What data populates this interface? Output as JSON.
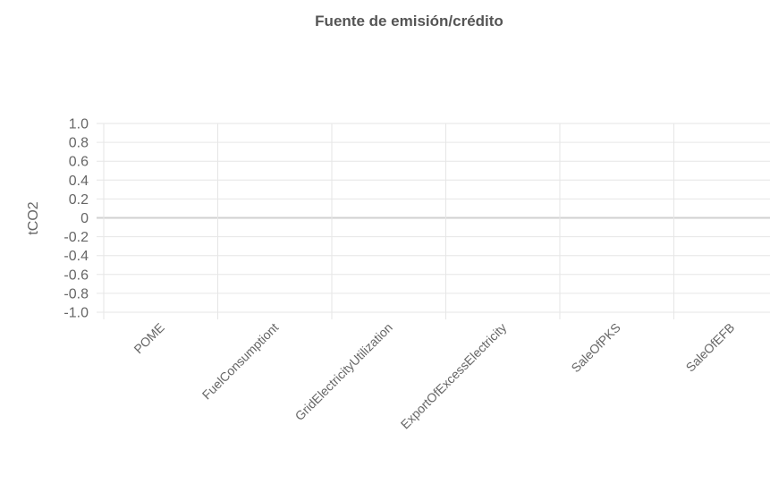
{
  "chart_data": {
    "type": "bar",
    "title": "Fuente de emisión/crédito",
    "xlabel": "",
    "ylabel": "tCO2",
    "categories": [
      "POME",
      "FuelConsumptiont",
      "GridElectricityUtilization",
      "ExportOfExcessElectricity",
      "SaleOfPKS",
      "SaleOfEFB"
    ],
    "series": [
      {
        "values": [
          0,
          0,
          0,
          0,
          0,
          0
        ]
      }
    ],
    "ylim": [
      -1.0,
      1.0
    ],
    "yticks": [
      "1.0",
      "0.8",
      "0.6",
      "0.4",
      "0.2",
      "0",
      "-0.2",
      "-0.4",
      "-0.6",
      "-0.8",
      "-1.0"
    ],
    "grid": true,
    "legend": "none"
  }
}
